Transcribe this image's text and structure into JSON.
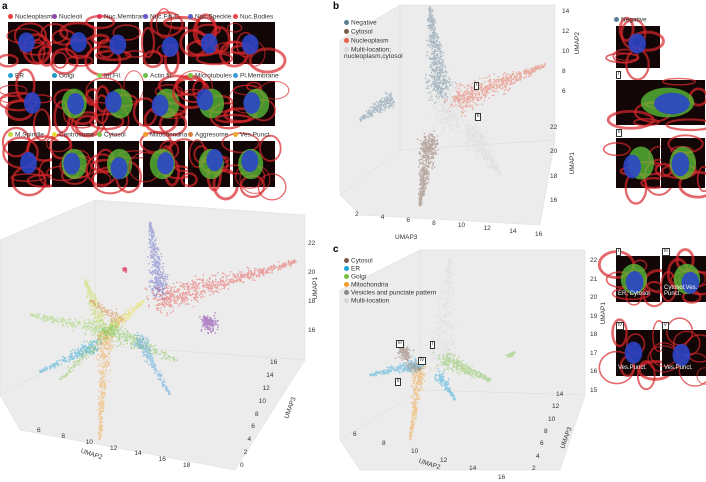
{
  "panel_a": {
    "label": "a",
    "classes": [
      {
        "name": "Nucleoplasm",
        "color": "#e8413f"
      },
      {
        "name": "Nucleoli",
        "color": "#8e44ad"
      },
      {
        "name": "Nuc.Membrane",
        "color": "#e0325a"
      },
      {
        "name": "Nuc.Fib.C.",
        "color": "#6a5acd"
      },
      {
        "name": "Nuc.Speckle",
        "color": "#5b5fc7"
      },
      {
        "name": "Nuc.Bodies",
        "color": "#e8484a"
      },
      {
        "name": "ER",
        "color": "#1fa3d6"
      },
      {
        "name": "Golgi",
        "color": "#1f9bc4"
      },
      {
        "name": "Int.Fil.",
        "color": "#8fd14f"
      },
      {
        "name": "Actin fil.",
        "color": "#6cc04a"
      },
      {
        "name": "Microtubules",
        "color": "#7dc242"
      },
      {
        "name": "Pl.Membrane",
        "color": "#3b9cd9"
      },
      {
        "name": "M.Spindle",
        "color": "#c5d93a"
      },
      {
        "name": "Centrosome",
        "color": "#e8e03a"
      },
      {
        "name": "Cytosol",
        "color": "#77c043"
      },
      {
        "name": "Mitochondria",
        "color": "#f39c2d"
      },
      {
        "name": "Aggresome",
        "color": "#d7803a"
      },
      {
        "name": "Ves.Punct.",
        "color": "#f0a830"
      }
    ],
    "axes": [
      {
        "label": "UMAP1",
        "ticks": [
          22,
          20,
          18,
          16
        ]
      },
      {
        "label": "UMAP3",
        "ticks": [
          16,
          14,
          12,
          10,
          8,
          6,
          4,
          2,
          0
        ]
      },
      {
        "label": "UMAP2",
        "ticks": [
          6,
          8,
          10,
          12,
          14,
          16,
          18
        ]
      }
    ]
  },
  "panel_b": {
    "label": "b",
    "legend": [
      {
        "name": "Negative",
        "color": "#5b7f95"
      },
      {
        "name": "Cytosol",
        "color": "#7a5a4a"
      },
      {
        "name": "Nucleoplasm",
        "color": "#e8604a"
      },
      {
        "name": "Multi-location; nucleoplasm,cytosol",
        "color": "#d8d8d8"
      }
    ],
    "axes": [
      {
        "label": "UMAP2",
        "ticks": [
          14,
          12,
          10,
          8,
          6
        ]
      },
      {
        "label": "UMAP1",
        "ticks": [
          22,
          20,
          18,
          16
        ]
      },
      {
        "label": "UMAP3",
        "ticks": [
          2,
          4,
          6,
          8,
          10,
          12,
          14,
          16
        ]
      }
    ],
    "callouts": [
      "i",
      "ii"
    ],
    "images": [
      {
        "tag": "Negative"
      },
      {
        "tag": "i"
      },
      {
        "tag": "ii"
      }
    ]
  },
  "panel_c": {
    "label": "c",
    "legend": [
      {
        "name": "Cytosol",
        "color": "#7a5a4a"
      },
      {
        "name": "ER",
        "color": "#1fa3d6"
      },
      {
        "name": "Golgi",
        "color": "#77c043"
      },
      {
        "name": "Mitochondria",
        "color": "#f39c2d"
      },
      {
        "name": "Vesicles and punctate pattern",
        "color": "#888888"
      },
      {
        "name": "Multi-location",
        "color": "#d8d8d8"
      }
    ],
    "axes": [
      {
        "label": "UMAP1",
        "ticks": [
          22,
          21,
          20,
          19,
          18,
          17,
          16,
          15
        ]
      },
      {
        "label": "UMAP3",
        "ticks": [
          14,
          12,
          10,
          8,
          6,
          4,
          2
        ]
      },
      {
        "label": "UMAP2",
        "ticks": [
          6,
          8,
          10,
          12,
          14,
          16
        ]
      }
    ],
    "callouts": [
      "iii",
      "i",
      "iv",
      "ii"
    ],
    "images": [
      {
        "tag": "i",
        "caption": "ER, Cytosol"
      },
      {
        "tag": "iii",
        "caption": "Cytosol,Ves. Punct."
      },
      {
        "tag": "iv",
        "caption": "Ves.Punct."
      },
      {
        "tag": "v",
        "caption": "Ves.Punct."
      }
    ]
  }
}
